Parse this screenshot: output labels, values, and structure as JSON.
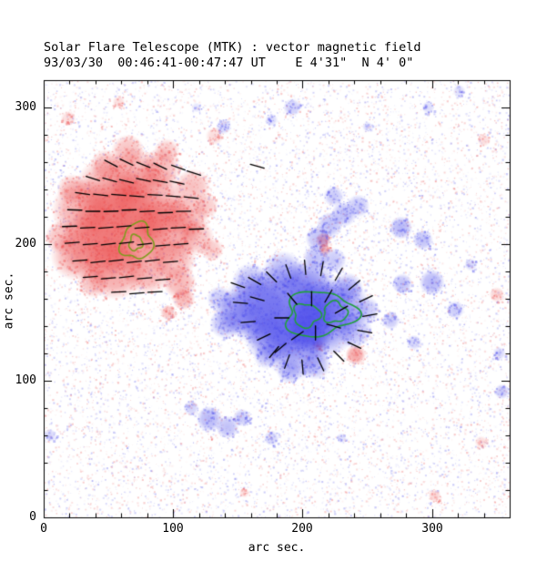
{
  "header": {
    "title": "Solar Flare Telescope (MTK) : vector magnetic field",
    "subtitle": "93/03/30  00:46:41-00:47:47 UT    E 4'31\"  N 4' 0\""
  },
  "chart_data": {
    "type": "heatmap",
    "title": "Solar Flare Telescope (MTK) : vector magnetic field",
    "subtitle": "93/03/30  00:46:41-00:47:47 UT    E 4'31\"  N 4' 0\"",
    "xlabel": "arc sec.",
    "ylabel": "arc sec.",
    "xlim": [
      0,
      360
    ],
    "ylim": [
      0,
      320
    ],
    "xticks": [
      "0",
      "100",
      "200",
      "300"
    ],
    "yticks": [
      "0",
      "100",
      "200",
      "300"
    ],
    "grid": false,
    "legend": "none",
    "polarity_colors": {
      "positive": "#eb4646",
      "negative": "#4646eb"
    },
    "vector_color": "#000000",
    "vector_length": 11,
    "noise": {
      "count": 12000
    },
    "positive_blobs": [
      [
        60,
        215,
        38,
        0.6
      ],
      [
        42,
        200,
        30,
        0.5
      ],
      [
        80,
        228,
        32,
        0.5
      ],
      [
        95,
        210,
        26,
        0.45
      ],
      [
        50,
        240,
        26,
        0.45
      ],
      [
        70,
        250,
        22,
        0.4
      ],
      [
        30,
        225,
        24,
        0.45
      ],
      [
        25,
        192,
        20,
        0.4
      ],
      [
        55,
        182,
        24,
        0.5
      ],
      [
        80,
        182,
        20,
        0.45
      ],
      [
        100,
        190,
        18,
        0.4
      ],
      [
        110,
        220,
        18,
        0.4
      ],
      [
        115,
        242,
        14,
        0.35
      ],
      [
        90,
        255,
        16,
        0.4
      ],
      [
        65,
        268,
        13,
        0.35
      ],
      [
        14,
        205,
        13,
        0.35
      ],
      [
        105,
        172,
        13,
        0.4
      ],
      [
        118,
        205,
        14,
        0.35
      ],
      [
        130,
        196,
        9,
        0.3
      ],
      [
        38,
        172,
        12,
        0.35
      ],
      [
        22,
        240,
        12,
        0.35
      ],
      [
        48,
        258,
        12,
        0.35
      ],
      [
        95,
        268,
        10,
        0.3
      ],
      [
        125,
        228,
        10,
        0.3
      ],
      [
        108,
        160,
        9,
        0.4
      ],
      [
        96,
        150,
        6,
        0.35
      ],
      [
        216,
        203,
        6,
        0.45
      ],
      [
        217,
        196,
        5,
        0.4
      ],
      [
        241,
        119,
        8,
        0.5
      ],
      [
        212,
        126,
        5,
        0.3
      ],
      [
        350,
        163,
        6,
        0.25
      ],
      [
        340,
        276,
        5,
        0.2
      ],
      [
        302,
        16,
        5,
        0.25
      ],
      [
        338,
        55,
        5,
        0.2
      ],
      [
        19,
        292,
        6,
        0.2
      ],
      [
        58,
        304,
        5,
        0.18
      ],
      [
        132,
        279,
        7,
        0.2
      ],
      [
        155,
        18,
        4,
        0.18
      ]
    ],
    "negative_blobs": [
      [
        190,
        150,
        40,
        0.65
      ],
      [
        165,
        153,
        28,
        0.5
      ],
      [
        215,
        145,
        30,
        0.6
      ],
      [
        195,
        125,
        26,
        0.45
      ],
      [
        230,
        155,
        22,
        0.45
      ],
      [
        175,
        132,
        20,
        0.4
      ],
      [
        150,
        150,
        18,
        0.4
      ],
      [
        205,
        168,
        22,
        0.45
      ],
      [
        185,
        180,
        16,
        0.35
      ],
      [
        160,
        172,
        15,
        0.35
      ],
      [
        240,
        137,
        14,
        0.35
      ],
      [
        235,
        168,
        12,
        0.35
      ],
      [
        210,
        112,
        12,
        0.35
      ],
      [
        190,
        107,
        10,
        0.3
      ],
      [
        140,
        142,
        12,
        0.35
      ],
      [
        136,
        160,
        10,
        0.3
      ],
      [
        250,
        152,
        10,
        0.3
      ],
      [
        224,
        188,
        10,
        0.3
      ],
      [
        172,
        118,
        10,
        0.3
      ],
      [
        205,
        140,
        20,
        0.55
      ],
      [
        212,
        204,
        10,
        0.35
      ],
      [
        221,
        214,
        10,
        0.35
      ],
      [
        232,
        222,
        10,
        0.35
      ],
      [
        243,
        228,
        9,
        0.3
      ],
      [
        224,
        235,
        8,
        0.3
      ],
      [
        210,
        190,
        10,
        0.35
      ],
      [
        276,
        212,
        9,
        0.4
      ],
      [
        293,
        203,
        8,
        0.35
      ],
      [
        300,
        172,
        10,
        0.4
      ],
      [
        277,
        171,
        8,
        0.35
      ],
      [
        318,
        152,
        7,
        0.3
      ],
      [
        268,
        144,
        7,
        0.3
      ],
      [
        286,
        128,
        6,
        0.25
      ],
      [
        354,
        92,
        6,
        0.3
      ],
      [
        352,
        120,
        5,
        0.22
      ],
      [
        330,
        185,
        5,
        0.22
      ],
      [
        128,
        72,
        10,
        0.4
      ],
      [
        142,
        66,
        9,
        0.35
      ],
      [
        153,
        73,
        7,
        0.3
      ],
      [
        176,
        58,
        6,
        0.25
      ],
      [
        114,
        80,
        6,
        0.25
      ],
      [
        5,
        60,
        5,
        0.22
      ],
      [
        230,
        58,
        4,
        0.18
      ],
      [
        192,
        300,
        7,
        0.28
      ],
      [
        139,
        286,
        6,
        0.25
      ],
      [
        176,
        291,
        5,
        0.2
      ],
      [
        297,
        300,
        5,
        0.2
      ],
      [
        250,
        286,
        4,
        0.18
      ],
      [
        118,
        300,
        4,
        0.15
      ],
      [
        321,
        312,
        5,
        0.18
      ]
    ],
    "contours": [
      {
        "cx": 72,
        "cy": 202,
        "rx": 12,
        "ry": 14,
        "rot": 15,
        "p1": 0.5,
        "p2": 2.1,
        "color": "#7f9c1e"
      },
      {
        "cx": 71,
        "cy": 201,
        "rx": 5,
        "ry": 6,
        "rot": 10,
        "p1": 1.4,
        "p2": 0.3,
        "color": "#7f9c1e"
      },
      {
        "cx": 213,
        "cy": 149,
        "rx": 27,
        "ry": 17,
        "rot": -5,
        "p1": 1.2,
        "p2": 0.4,
        "color": "#22a03c"
      },
      {
        "cx": 203,
        "cy": 148,
        "rx": 10,
        "ry": 9,
        "rot": 0,
        "p1": 2.2,
        "p2": 1.0,
        "color": "#22a03c"
      },
      {
        "cx": 225,
        "cy": 150,
        "rx": 9,
        "ry": 8,
        "rot": 0,
        "p1": 0.8,
        "p2": 2.6,
        "color": "#22a03c"
      }
    ],
    "vectors": [
      [
        52,
        259,
        -28
      ],
      [
        64,
        260,
        -25
      ],
      [
        77,
        258,
        -22
      ],
      [
        90,
        257,
        -26
      ],
      [
        104,
        256,
        -20
      ],
      [
        38,
        248,
        -18
      ],
      [
        51,
        247,
        -15
      ],
      [
        64,
        246,
        -14
      ],
      [
        77,
        247,
        -12
      ],
      [
        90,
        246,
        -10
      ],
      [
        103,
        245,
        -12
      ],
      [
        30,
        237,
        -8
      ],
      [
        44,
        236,
        -6
      ],
      [
        58,
        236,
        -5
      ],
      [
        72,
        235,
        -4
      ],
      [
        86,
        236,
        -3
      ],
      [
        100,
        235,
        -5
      ],
      [
        114,
        234,
        -6
      ],
      [
        24,
        225,
        -2
      ],
      [
        38,
        224,
        0
      ],
      [
        52,
        224,
        2
      ],
      [
        66,
        225,
        2
      ],
      [
        80,
        224,
        3
      ],
      [
        94,
        223,
        2
      ],
      [
        108,
        224,
        1
      ],
      [
        20,
        213,
        2
      ],
      [
        34,
        212,
        3
      ],
      [
        48,
        212,
        4
      ],
      [
        62,
        213,
        5
      ],
      [
        76,
        212,
        5
      ],
      [
        90,
        211,
        4
      ],
      [
        104,
        212,
        3
      ],
      [
        118,
        211,
        2
      ],
      [
        22,
        201,
        4
      ],
      [
        36,
        200,
        5
      ],
      [
        50,
        200,
        6
      ],
      [
        64,
        201,
        6
      ],
      [
        78,
        200,
        6
      ],
      [
        92,
        199,
        5
      ],
      [
        106,
        200,
        4
      ],
      [
        28,
        188,
        5
      ],
      [
        42,
        187,
        6
      ],
      [
        56,
        188,
        7
      ],
      [
        70,
        187,
        7
      ],
      [
        84,
        188,
        6
      ],
      [
        98,
        187,
        5
      ],
      [
        36,
        176,
        4
      ],
      [
        50,
        175,
        5
      ],
      [
        64,
        176,
        6
      ],
      [
        78,
        175,
        5
      ],
      [
        92,
        174,
        4
      ],
      [
        58,
        165,
        3
      ],
      [
        72,
        164,
        4
      ],
      [
        86,
        165,
        3
      ],
      [
        165,
        257,
        -15
      ],
      [
        116,
        252,
        -18
      ],
      [
        150,
        170,
        160
      ],
      [
        163,
        173,
        150
      ],
      [
        176,
        176,
        135
      ],
      [
        152,
        157,
        175
      ],
      [
        165,
        160,
        165
      ],
      [
        158,
        143,
        185
      ],
      [
        170,
        132,
        205
      ],
      [
        183,
        124,
        220
      ],
      [
        189,
        180,
        110
      ],
      [
        202,
        183,
        95
      ],
      [
        215,
        182,
        80
      ],
      [
        228,
        178,
        60
      ],
      [
        240,
        170,
        40
      ],
      [
        249,
        160,
        25
      ],
      [
        252,
        148,
        10
      ],
      [
        248,
        136,
        -10
      ],
      [
        240,
        126,
        -25
      ],
      [
        228,
        118,
        -45
      ],
      [
        214,
        112,
        -65
      ],
      [
        200,
        110,
        -85
      ],
      [
        188,
        114,
        -110
      ],
      [
        178,
        121,
        -130
      ],
      [
        192,
        160,
        130
      ],
      [
        220,
        162,
        60
      ],
      [
        224,
        140,
        -15
      ],
      [
        196,
        133,
        -145
      ],
      [
        184,
        146,
        180
      ],
      [
        230,
        152,
        30
      ],
      [
        207,
        160,
        90
      ],
      [
        210,
        135,
        -90
      ]
    ]
  }
}
